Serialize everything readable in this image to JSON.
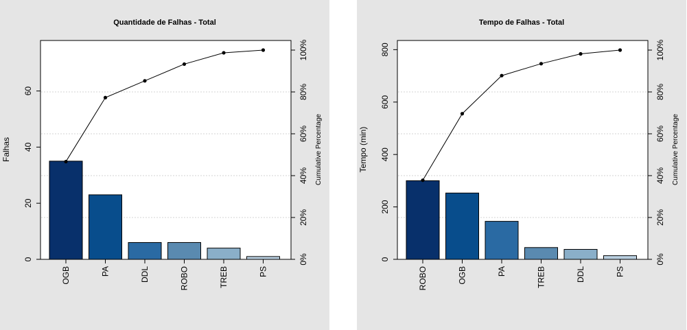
{
  "chart_data": [
    {
      "type": "bar",
      "title": "Quantidade de Falhas - Total",
      "ylabel": "Falhas",
      "y2label": "Cumulative Percentage",
      "categories": [
        "OGB",
        "PA",
        "DDL",
        "ROBO",
        "TREB",
        "PS"
      ],
      "values": [
        35,
        23,
        6,
        6,
        4,
        1
      ],
      "ylim": [
        0,
        78
      ],
      "yticks": [
        0,
        20,
        40,
        60
      ],
      "y2ticks": [
        "0%",
        "20%",
        "40%",
        "60%",
        "80%",
        "100%"
      ],
      "cumulative_pct": [
        46.7,
        77.3,
        85.3,
        93.3,
        98.7,
        100
      ],
      "colors": [
        "#08306b",
        "#084d8c",
        "#2a6aa3",
        "#5a8ab0",
        "#8aafc9",
        "#b9cfe0"
      ],
      "grid": true
    },
    {
      "type": "bar",
      "title": "Tempo de Falhas - Total",
      "ylabel": "Tempo (min)",
      "y2label": "Cumulative Percentage",
      "categories": [
        "ROBO",
        "OGB",
        "PA",
        "TREB",
        "DDL",
        "PS"
      ],
      "values": [
        300,
        253,
        145,
        45,
        38,
        14
      ],
      "ylim": [
        0,
        835
      ],
      "yticks": [
        0,
        200,
        400,
        600,
        800
      ],
      "y2ticks": [
        "0%",
        "20%",
        "40%",
        "60%",
        "80%",
        "100%"
      ],
      "cumulative_pct": [
        37.8,
        69.6,
        87.8,
        93.5,
        98.2,
        100
      ],
      "colors": [
        "#08306b",
        "#084d8c",
        "#2a6aa3",
        "#5a8ab0",
        "#8aafc9",
        "#b9cfe0"
      ],
      "grid": true
    }
  ]
}
